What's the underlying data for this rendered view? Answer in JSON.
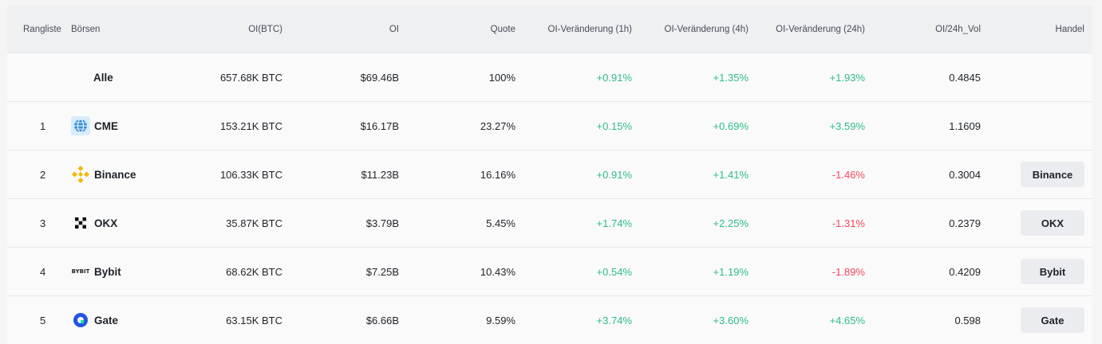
{
  "headers": {
    "rank": "Rangliste",
    "exchange": "Börsen",
    "oi_btc": "OI(BTC)",
    "oi": "OI",
    "share": "Quote",
    "chg_1h": "OI-Veränderung (1h)",
    "chg_4h": "OI-Veränderung (4h)",
    "chg_24h": "OI-Veränderung (24h)",
    "oi_vol": "OI/24h_Vol",
    "trade": "Handel"
  },
  "rows": [
    {
      "rank": "",
      "name": "Alle",
      "logo": "",
      "oi_btc": "657.68K BTC",
      "oi": "$69.46B",
      "share": "100%",
      "chg_1h": "+0.91%",
      "chg_4h": "+1.35%",
      "chg_24h": "+1.93%",
      "oi_vol": "0.4845",
      "trade": ""
    },
    {
      "rank": "1",
      "name": "CME",
      "logo": "globe-icon",
      "oi_btc": "153.21K BTC",
      "oi": "$16.17B",
      "share": "23.27%",
      "chg_1h": "+0.15%",
      "chg_4h": "+0.69%",
      "chg_24h": "+3.59%",
      "oi_vol": "1.1609",
      "trade": ""
    },
    {
      "rank": "2",
      "name": "Binance",
      "logo": "binance-logo-icon",
      "oi_btc": "106.33K BTC",
      "oi": "$11.23B",
      "share": "16.16%",
      "chg_1h": "+0.91%",
      "chg_4h": "+1.41%",
      "chg_24h": "-1.46%",
      "oi_vol": "0.3004",
      "trade": "Binance"
    },
    {
      "rank": "3",
      "name": "OKX",
      "logo": "okx-logo-icon",
      "oi_btc": "35.87K BTC",
      "oi": "$3.79B",
      "share": "5.45%",
      "chg_1h": "+1.74%",
      "chg_4h": "+2.25%",
      "chg_24h": "-1.31%",
      "oi_vol": "0.2379",
      "trade": "OKX"
    },
    {
      "rank": "4",
      "name": "Bybit",
      "logo": "bybit-logo-icon",
      "logo_text": "BYBIT",
      "oi_btc": "68.62K BTC",
      "oi": "$7.25B",
      "share": "10.43%",
      "chg_1h": "+0.54%",
      "chg_4h": "+1.19%",
      "chg_24h": "-1.89%",
      "oi_vol": "0.4209",
      "trade": "Bybit"
    },
    {
      "rank": "5",
      "name": "Gate",
      "logo": "gate-logo-icon",
      "oi_btc": "63.15K BTC",
      "oi": "$6.66B",
      "share": "9.59%",
      "chg_1h": "+3.74%",
      "chg_4h": "+3.60%",
      "chg_24h": "+4.65%",
      "oi_vol": "0.598",
      "trade": "Gate"
    }
  ],
  "colors": {
    "positive": "#2ebd85",
    "negative": "#f6465d",
    "binance": "#f0b90b",
    "gate": "#2354e6",
    "cme": "#3b8fd9"
  }
}
